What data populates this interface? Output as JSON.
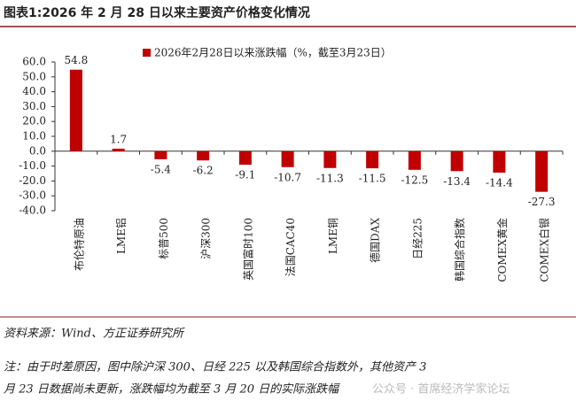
{
  "chart_data": {
    "type": "bar",
    "title": "图表1:2026 年 2 月 28 日以来主要资产价格变化情况",
    "legend": "2026年2月28日以来涨跌幅（%，截至3月23日）",
    "categories": [
      "布伦特原油",
      "LME铝",
      "标普500",
      "沪深300",
      "英国富时100",
      "法国CAC40",
      "LME铜",
      "德国DAX",
      "日经225",
      "韩国综合指数",
      "COMEX黄金",
      "COMEX白银"
    ],
    "values": [
      54.8,
      1.7,
      -5.4,
      -6.2,
      -9.1,
      -10.7,
      -11.3,
      -11.5,
      -12.5,
      -13.4,
      -14.4,
      -27.3
    ],
    "color": "#c00000",
    "ylim": [
      -40,
      60
    ],
    "yticks": [
      {
        "value": 60,
        "label": "60.0"
      },
      {
        "value": 50,
        "label": "50.0"
      },
      {
        "value": 40,
        "label": "40.0"
      },
      {
        "value": 30,
        "label": "30.0"
      },
      {
        "value": 20,
        "label": "20.0"
      },
      {
        "value": 10,
        "label": "10.0"
      },
      {
        "value": 0,
        "label": "0.0"
      },
      {
        "value": -10,
        "label": "-10.0"
      },
      {
        "value": -20,
        "label": "-20.0"
      },
      {
        "value": -30,
        "label": "-30.0"
      },
      {
        "value": -40,
        "label": "-40.0"
      }
    ],
    "source": "资料来源：Wind、方正证券研究所",
    "note": [
      "注：由于时差原因，图中除沪深 300、日经 225 以及韩国综合指数外，其他资产 3",
      "月 23 日数据尚未更新，涨跌幅均为截至 3 月 20 日的实际涨跌幅"
    ],
    "watermark": "公众号 · 首席经济学家论坛"
  }
}
